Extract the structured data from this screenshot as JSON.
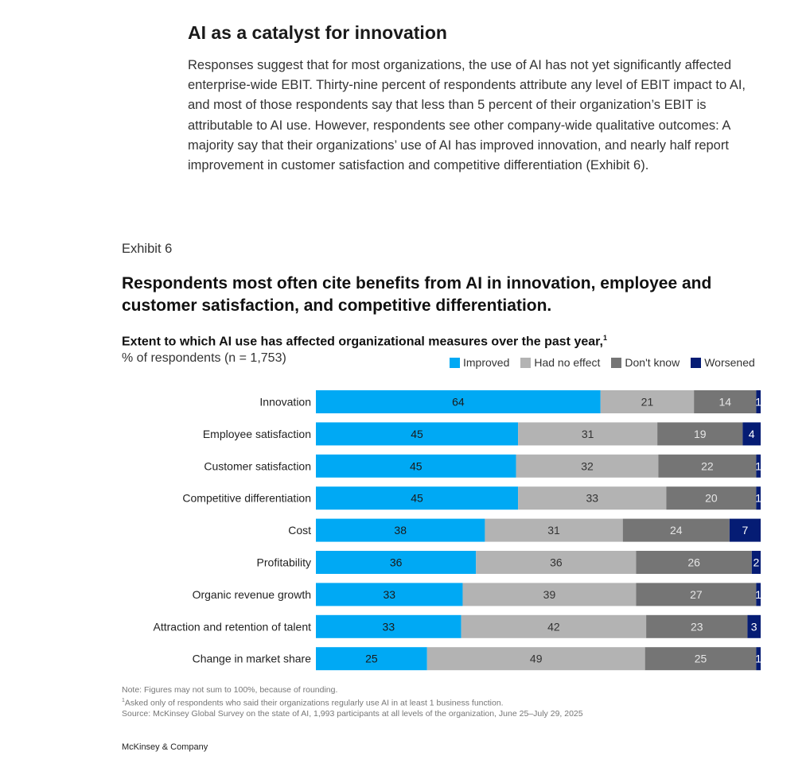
{
  "section": {
    "title": "AI as a catalyst for innovation",
    "body": "Responses suggest that for most organizations, the use of AI has not yet significantly affected enterprise-wide EBIT. Thirty-nine percent of respondents attribute any level of EBIT impact to AI, and most of those respondents say that less than 5 percent of their organization’s EBIT is attributable to AI use. However, respondents see other company-wide qualitative outcomes: A majority say that their organizations’ use of AI has improved innovation, and nearly half report improvement in customer satisfaction and competitive differentiation (Exhibit 6)."
  },
  "exhibit": {
    "label": "Exhibit 6",
    "title": "Respondents most often cite benefits from AI in innovation, employee and customer satisfaction, and competitive differentiation.",
    "subtitle": "Extent to which AI use has affected organizational measures over the past year,",
    "subtitle_footnote": "1",
    "units": "% of respondents (n = 1,753)"
  },
  "legend": [
    {
      "label": "Improved",
      "color": "#00a9f4"
    },
    {
      "label": "Had no effect",
      "color": "#b3b3b3"
    },
    {
      "label": "Don't know",
      "color": "#757575"
    },
    {
      "label": "Worsened",
      "color": "#051c74"
    }
  ],
  "chart_data": {
    "type": "bar",
    "orientation": "horizontal",
    "stacked": true,
    "categories": [
      "Innovation",
      "Employee satisfaction",
      "Customer satisfaction",
      "Competitive differentiation",
      "Cost",
      "Profitability",
      "Organic revenue growth",
      "Attraction and retention of talent",
      "Change in market share"
    ],
    "series": [
      {
        "name": "Improved",
        "color": "#00a9f4",
        "label_color": "#1a1a1a",
        "values": [
          64,
          45,
          45,
          45,
          38,
          36,
          33,
          33,
          25
        ]
      },
      {
        "name": "Had no effect",
        "color": "#b3b3b3",
        "label_color": "#333333",
        "values": [
          21,
          31,
          32,
          33,
          31,
          36,
          39,
          42,
          49
        ]
      },
      {
        "name": "Don't know",
        "color": "#757575",
        "label_color": "#e6e6e6",
        "values": [
          14,
          19,
          22,
          20,
          24,
          26,
          27,
          23,
          25
        ]
      },
      {
        "name": "Worsened",
        "color": "#051c74",
        "label_color": "#ffffff",
        "values": [
          1,
          4,
          1,
          1,
          7,
          2,
          1,
          3,
          1
        ]
      }
    ],
    "grid": false,
    "legend_position": "top-right"
  },
  "notes": {
    "note": "Note: Figures may not sum to 100%, because of rounding.",
    "footnote_marker": "1",
    "footnote": "Asked only of respondents who said their organizations regularly use AI in at least 1 business function.",
    "source": "Source: McKinsey Global Survey on the state of AI, 1,993 participants at all levels of the organization, June 25–July 29, 2025"
  },
  "footer": {
    "brand": "McKinsey & Company"
  }
}
